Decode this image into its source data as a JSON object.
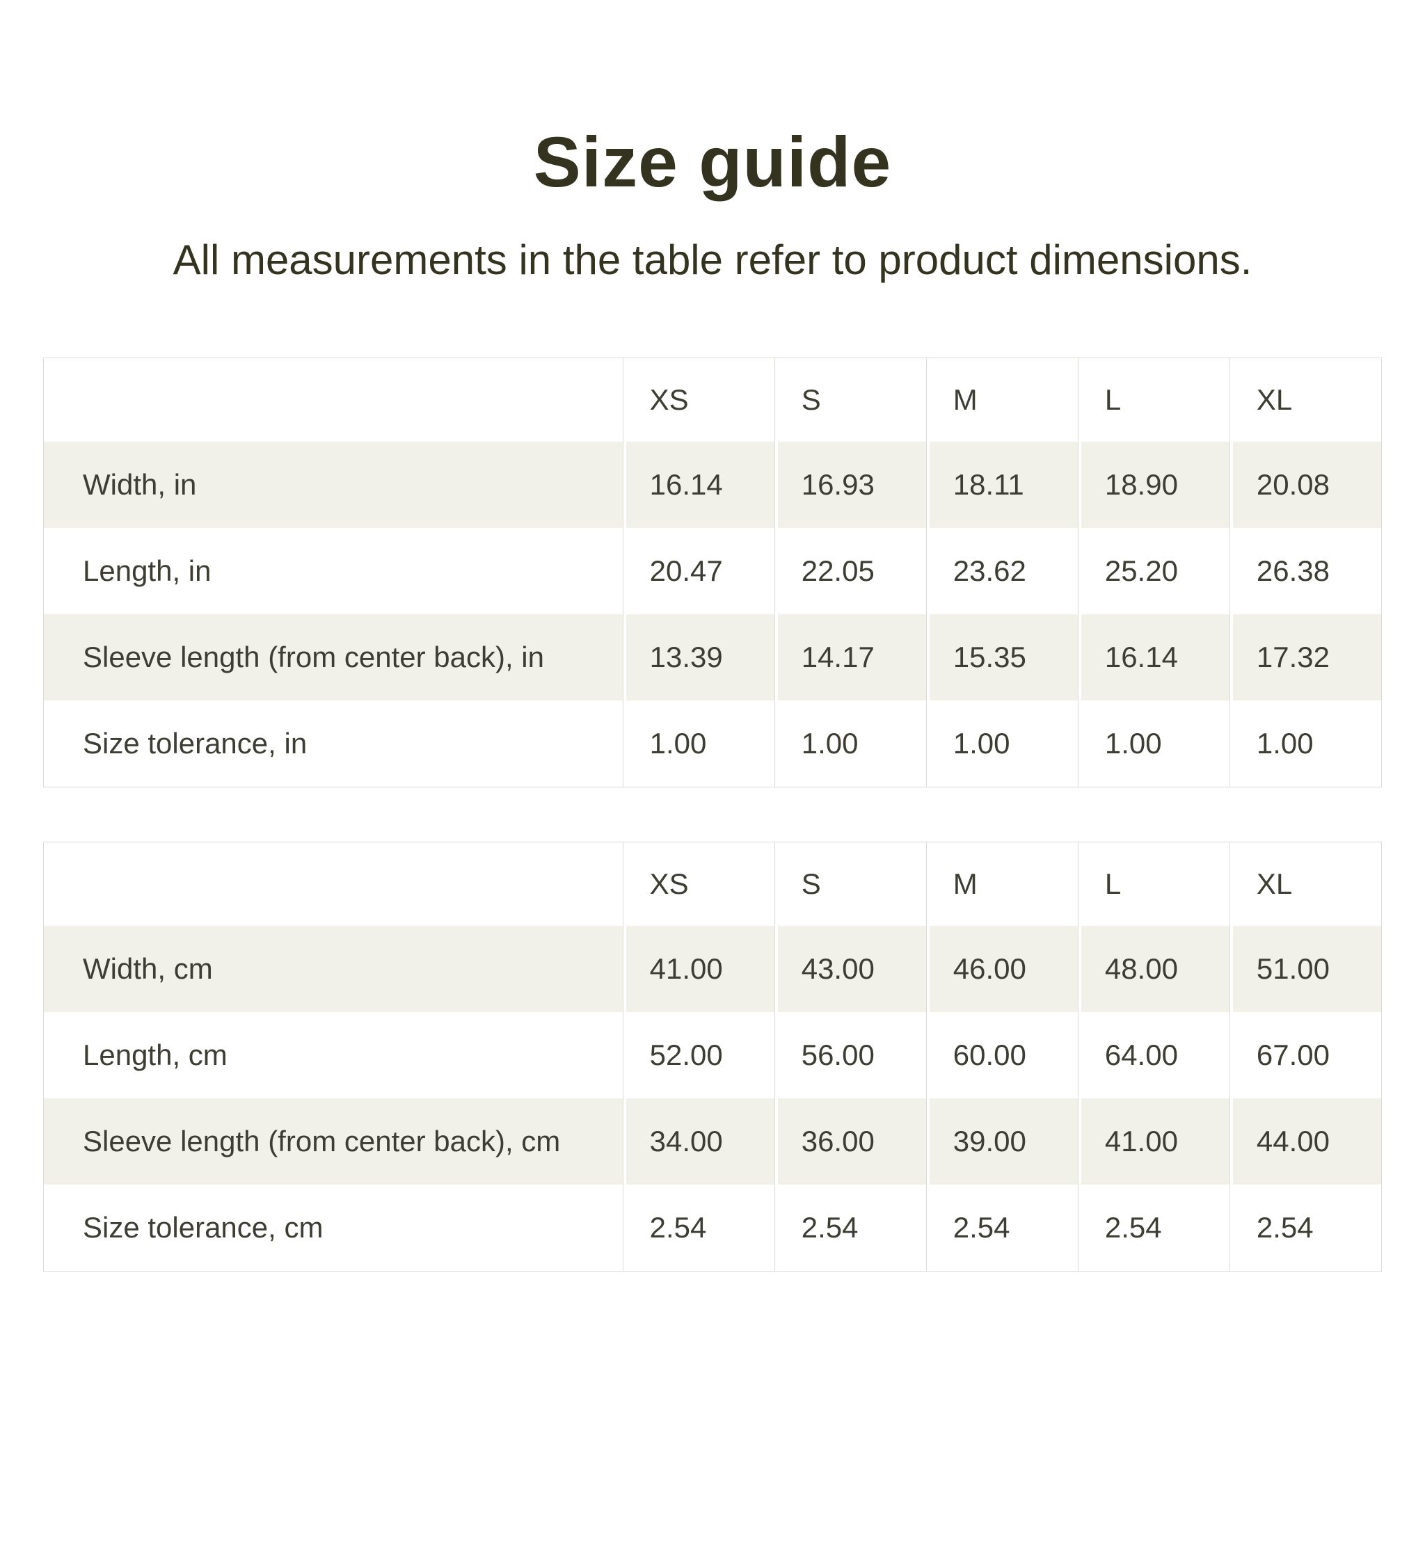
{
  "page": {
    "title": "Size guide",
    "subtitle": "All measurements in the table refer to product dimensions."
  },
  "colors": {
    "page_bg": "#ffffff",
    "heading_text": "#33331f",
    "table_text": "#3d3d33",
    "stripe": "#f1f1ea",
    "table_border": "#dcdcd6"
  },
  "tables": [
    {
      "id": "size-table-inches",
      "unit": "in",
      "sizes": [
        "XS",
        "S",
        "M",
        "L",
        "XL"
      ],
      "rows": [
        {
          "label": "Width, in",
          "values": [
            "16.14",
            "16.93",
            "18.11",
            "18.90",
            "20.08"
          ]
        },
        {
          "label": "Length, in",
          "values": [
            "20.47",
            "22.05",
            "23.62",
            "25.20",
            "26.38"
          ]
        },
        {
          "label": "Sleeve length (from center back), in",
          "values": [
            "13.39",
            "14.17",
            "15.35",
            "16.14",
            "17.32"
          ]
        },
        {
          "label": "Size tolerance, in",
          "values": [
            "1.00",
            "1.00",
            "1.00",
            "1.00",
            "1.00"
          ]
        }
      ]
    },
    {
      "id": "size-table-centimeters",
      "unit": "cm",
      "sizes": [
        "XS",
        "S",
        "M",
        "L",
        "XL"
      ],
      "rows": [
        {
          "label": "Width, cm",
          "values": [
            "41.00",
            "43.00",
            "46.00",
            "48.00",
            "51.00"
          ]
        },
        {
          "label": "Length, cm",
          "values": [
            "52.00",
            "56.00",
            "60.00",
            "64.00",
            "67.00"
          ]
        },
        {
          "label": "Sleeve length (from center back), cm",
          "values": [
            "34.00",
            "36.00",
            "39.00",
            "41.00",
            "44.00"
          ]
        },
        {
          "label": "Size tolerance, cm",
          "values": [
            "2.54",
            "2.54",
            "2.54",
            "2.54",
            "2.54"
          ]
        }
      ]
    }
  ]
}
